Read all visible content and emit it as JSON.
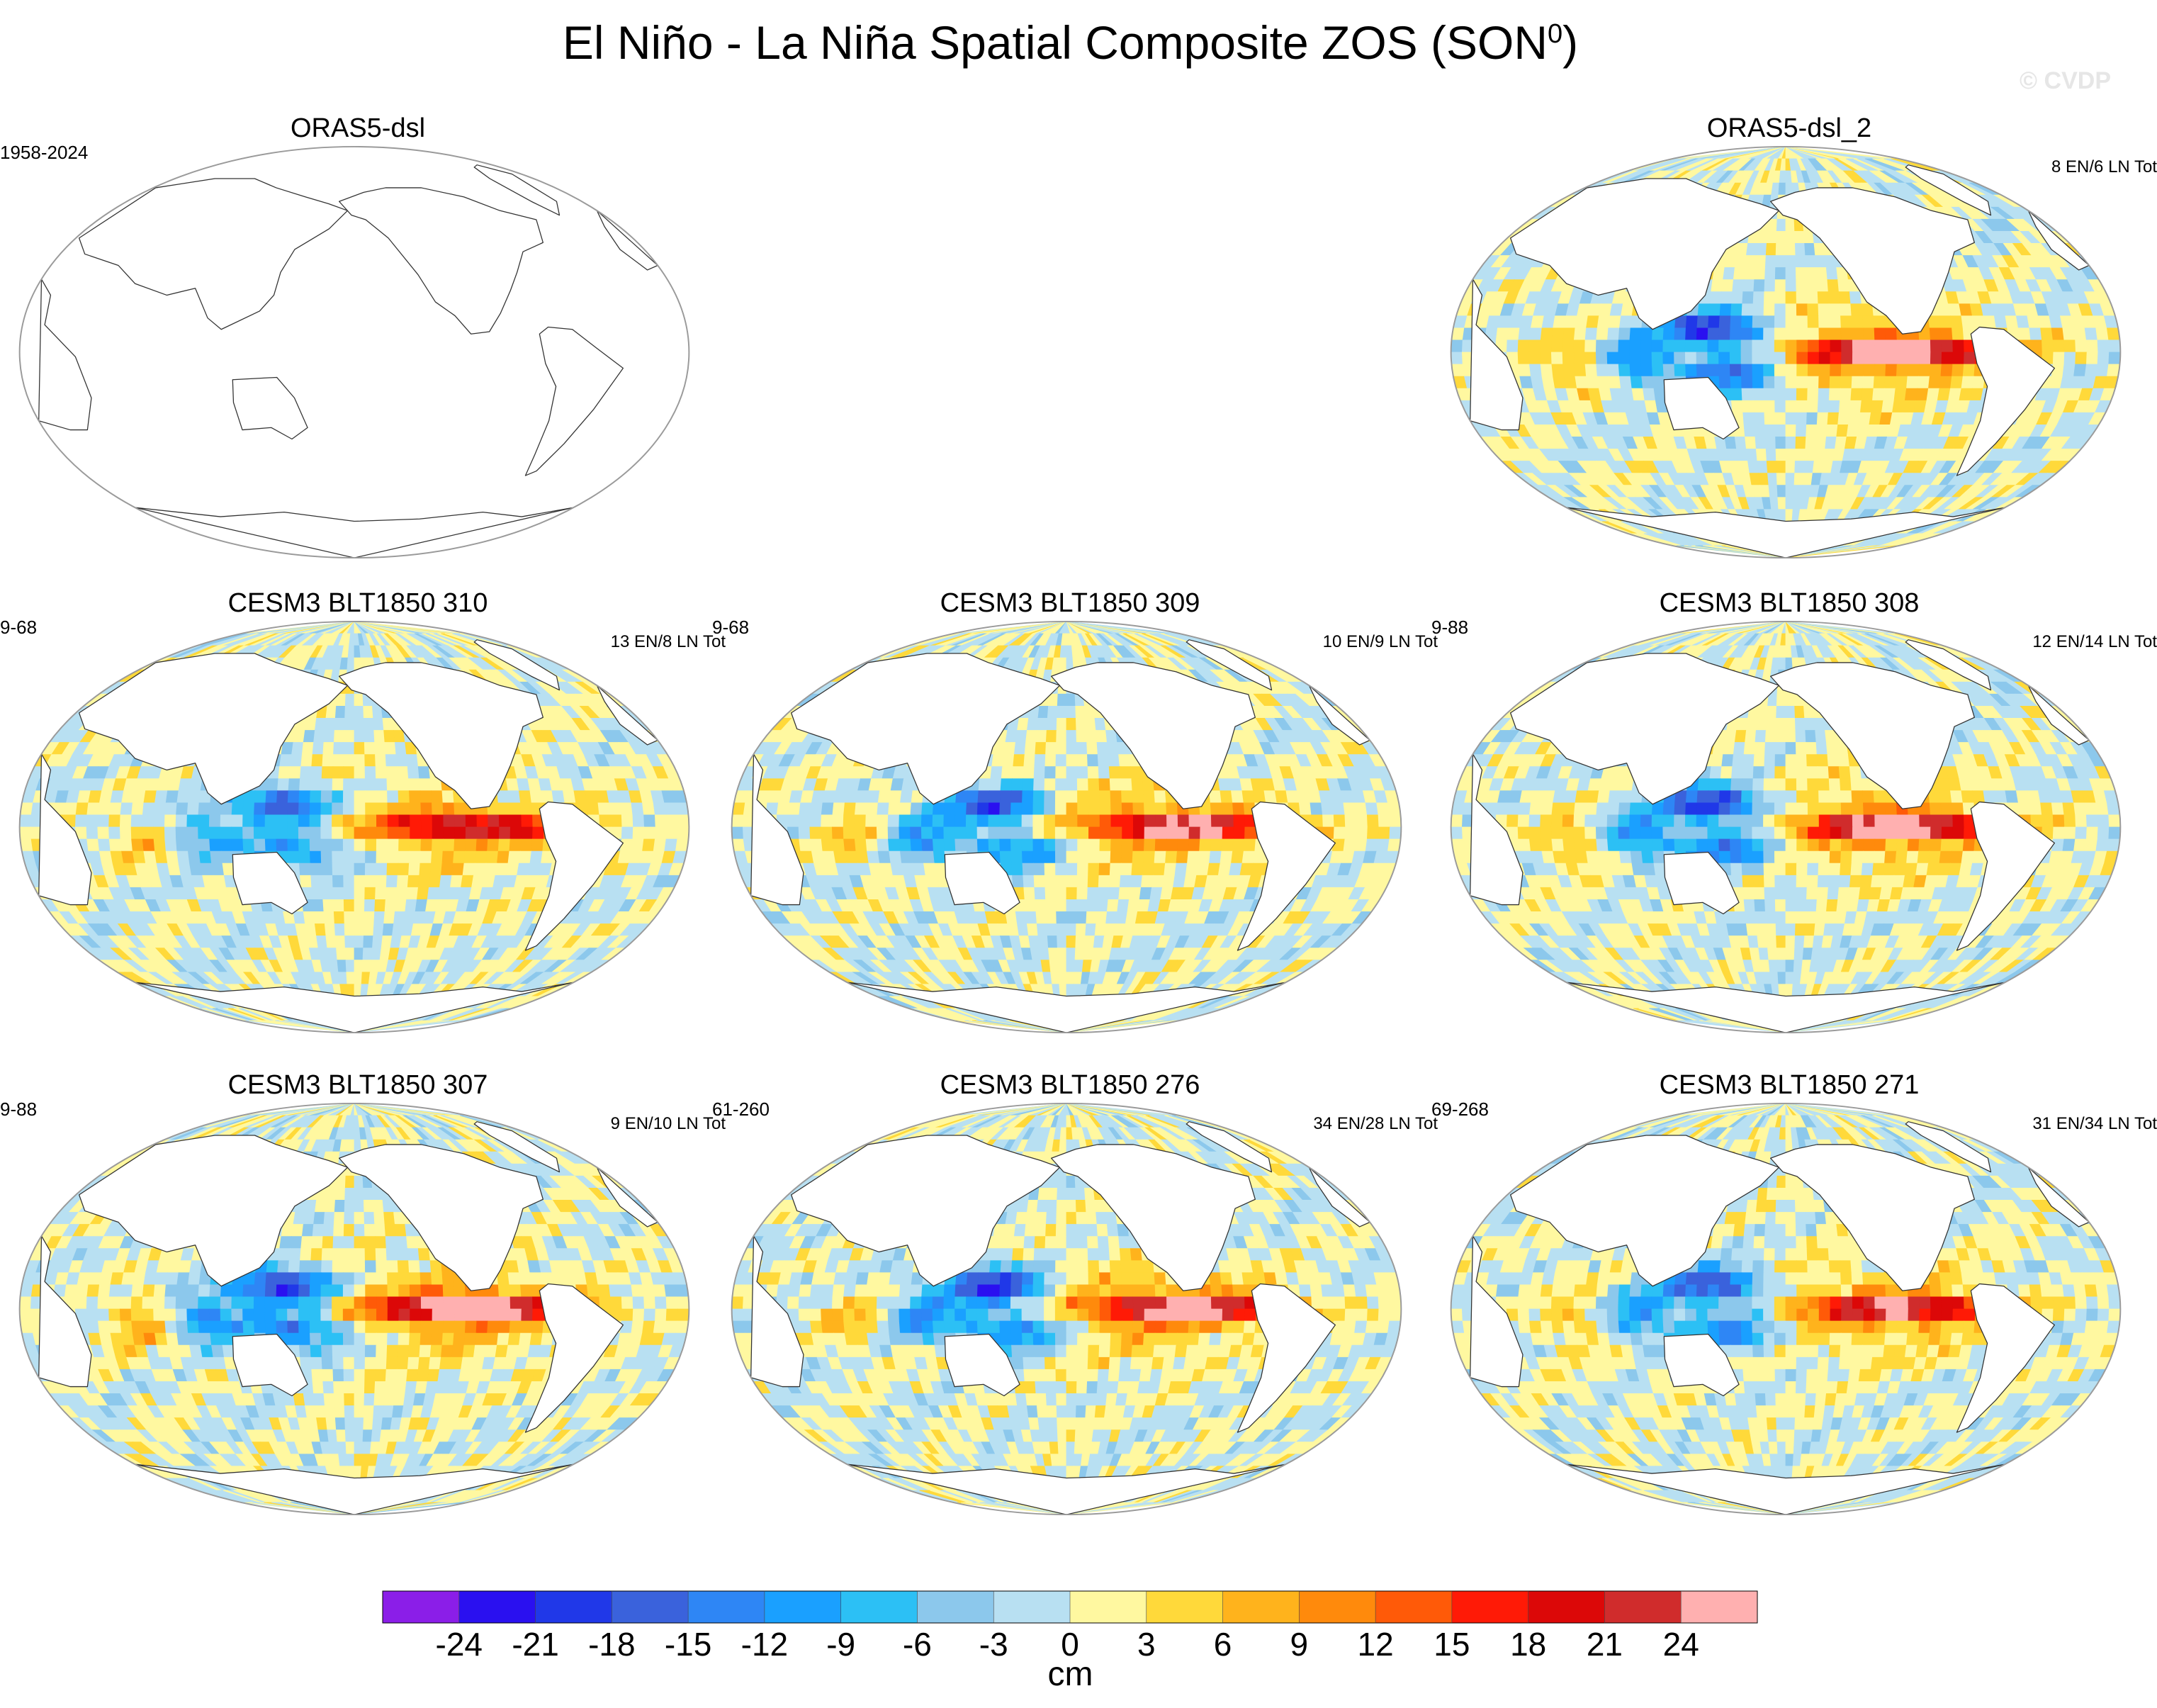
{
  "title": "El Niño - La Niña Spatial Composite ZOS (SON",
  "title_superscript": "0",
  "title_close": ")",
  "watermark": "© CVDP",
  "chart_data": {
    "type": "heatmap",
    "variable": "ZOS",
    "season": "SON",
    "units": "cm",
    "colorbar": {
      "levels": [
        -24,
        -21,
        -18,
        -15,
        -12,
        -9,
        -6,
        -3,
        0,
        3,
        6,
        9,
        12,
        15,
        18,
        21,
        24
      ],
      "labels": [
        "-24",
        "-21",
        "-18",
        "-15",
        "-12",
        "-9",
        "-6",
        "-3",
        "0",
        "3",
        "6",
        "9",
        "12",
        "15",
        "18",
        "21",
        "24"
      ],
      "colors": [
        "#8b1ee8",
        "#2a10f0",
        "#2038e8",
        "#3a62dc",
        "#2e86f5",
        "#1aa0ff",
        "#2cc0f5",
        "#8cc8ec",
        "#b8e0f2",
        "#fff8a0",
        "#ffd93a",
        "#ffb31c",
        "#ff8a0c",
        "#ff5a08",
        "#ff1a06",
        "#dc0808",
        "#d02c2c",
        "#ffb0b0"
      ],
      "label": "cm"
    },
    "panels": [
      {
        "title": "ORAS5-dsl",
        "left_text": "1958-2024",
        "right_text": "",
        "filled": false,
        "amp": 0
      },
      {
        "title": "ORAS5-dsl_2",
        "left_text": "",
        "right_text": "8 EN/6 LN Tot",
        "filled": true,
        "amp": 27
      },
      {
        "title": "CESM3 BLT1850 310",
        "left_text": "9-68",
        "right_text": "13 EN/8 LN Tot",
        "filled": true,
        "amp": 21
      },
      {
        "title": "CESM3 BLT1850 309",
        "left_text": "9-68",
        "right_text": "10 EN/9 LN Tot",
        "filled": true,
        "amp": 23
      },
      {
        "title": "CESM3 BLT1850 308",
        "left_text": "9-88",
        "right_text": "12 EN/14 LN Tot",
        "filled": true,
        "amp": 26
      },
      {
        "title": "CESM3 BLT1850 307",
        "left_text": "9-88",
        "right_text": "9 EN/10 LN Tot",
        "filled": true,
        "amp": 27
      },
      {
        "title": "CESM3 BLT1850 276",
        "left_text": "61-260",
        "right_text": "34 EN/28 LN Tot",
        "filled": true,
        "amp": 25
      },
      {
        "title": "CESM3 BLT1850 271",
        "left_text": "69-268",
        "right_text": "31 EN/34 LN Tot",
        "filled": true,
        "amp": 23
      }
    ]
  }
}
